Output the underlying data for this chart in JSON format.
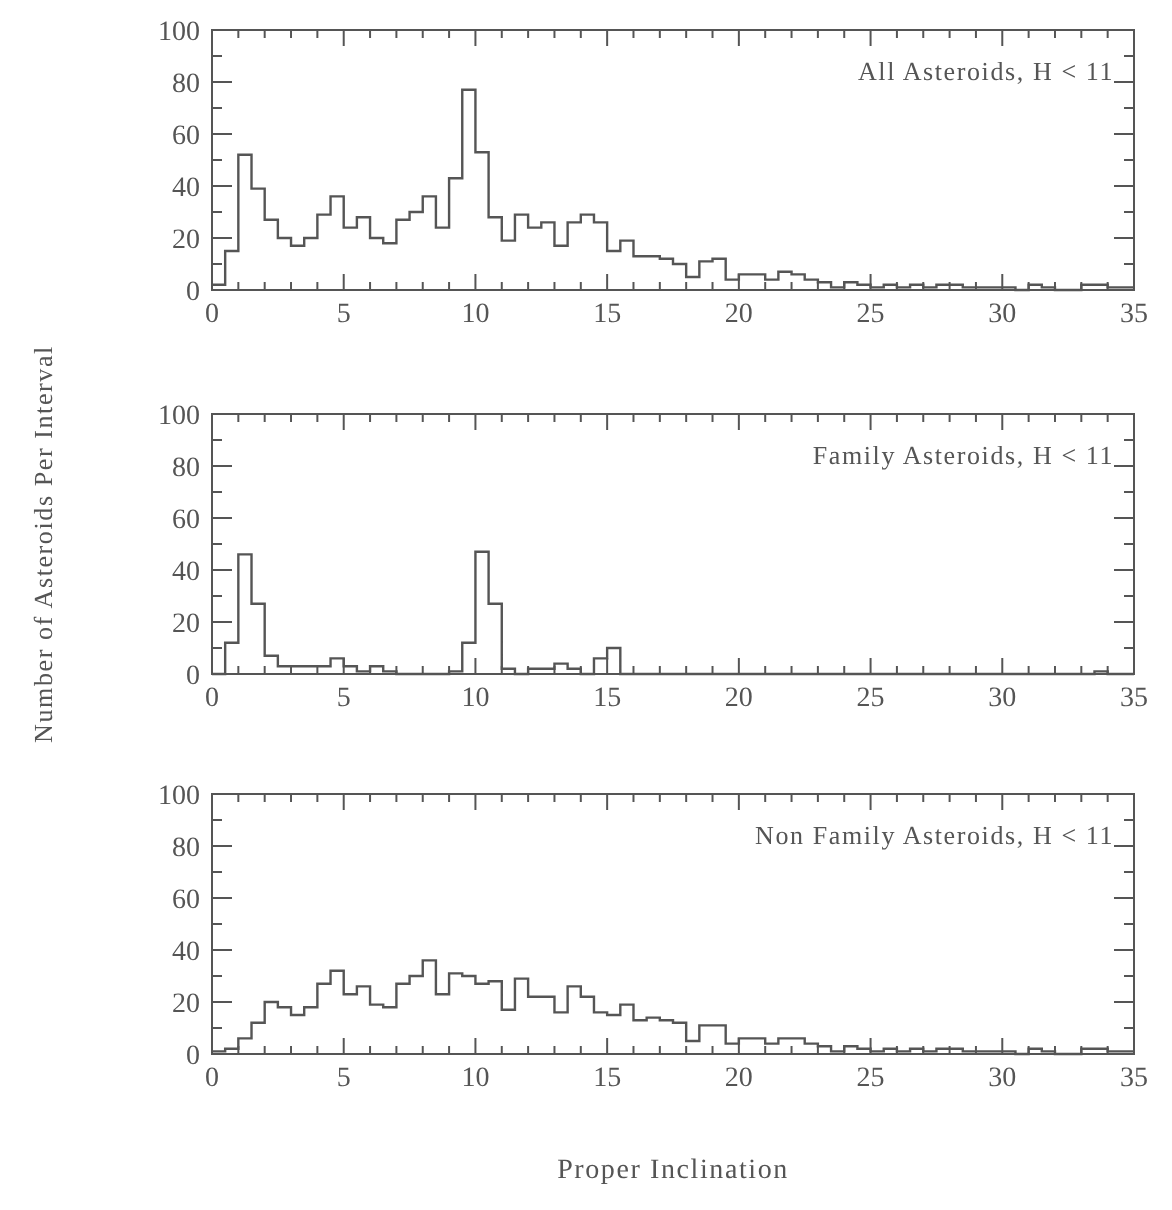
{
  "chart_data": [
    {
      "type": "histogram",
      "annotations": [
        "All Asteroids, H < 11"
      ],
      "color": "#555555",
      "bins": [
        0,
        0.5,
        1,
        1.5,
        2,
        2.5,
        3,
        3.5,
        4,
        4.5,
        5,
        5.5,
        6,
        6.5,
        7,
        7.5,
        8,
        8.5,
        9,
        9.5,
        10,
        10.5,
        11,
        11.5,
        12,
        12.5,
        13,
        13.5,
        14,
        14.5,
        15,
        15.5,
        16,
        16.5,
        17,
        17.5,
        18,
        18.5,
        19,
        19.5,
        20,
        20.5,
        21,
        21.5,
        22,
        22.5,
        23,
        23.5,
        24,
        24.5,
        25,
        25.5,
        26,
        26.5,
        27,
        27.5,
        28,
        28.5,
        29,
        29.5,
        30,
        30.5,
        31,
        31.5,
        32,
        32.5,
        33,
        33.5,
        34,
        34.5,
        35
      ],
      "values": [
        2,
        15,
        52,
        39,
        27,
        20,
        17,
        20,
        29,
        36,
        24,
        28,
        20,
        18,
        27,
        30,
        36,
        24,
        43,
        77,
        53,
        28,
        19,
        29,
        24,
        26,
        17,
        26,
        29,
        26,
        15,
        19,
        13,
        13,
        12,
        10,
        5,
        11,
        12,
        4,
        6,
        6,
        4,
        7,
        6,
        4,
        3,
        1,
        3,
        2,
        1,
        2,
        1,
        2,
        1,
        2,
        2,
        1,
        1,
        1,
        1,
        0,
        2,
        1,
        0,
        0,
        2,
        2,
        1,
        1
      ],
      "xlim": [
        0,
        35
      ],
      "xticks": [
        0,
        {
          "value": 1,
          "label": null
        },
        {
          "value": 2,
          "label": null
        },
        {
          "value": 3,
          "label": null
        },
        {
          "value": 4,
          "label": null
        },
        5,
        {
          "value": 6,
          "label": null
        },
        {
          "value": 7,
          "label": null
        },
        {
          "value": 8,
          "label": null
        },
        {
          "value": 9,
          "label": null
        },
        10,
        {
          "value": 11,
          "label": null
        },
        {
          "value": 12,
          "label": null
        },
        {
          "value": 13,
          "label": null
        },
        {
          "value": 14,
          "label": null
        },
        15,
        {
          "value": 16,
          "label": null
        },
        {
          "value": 17,
          "label": null
        },
        {
          "value": 18,
          "label": null
        },
        {
          "value": 19,
          "label": null
        },
        20,
        {
          "value": 21,
          "label": null
        },
        {
          "value": 22,
          "label": null
        },
        {
          "value": 23,
          "label": null
        },
        {
          "value": 24,
          "label": null
        },
        25,
        {
          "value": 26,
          "label": null
        },
        {
          "value": 27,
          "label": null
        },
        {
          "value": 28,
          "label": null
        },
        {
          "value": 29,
          "label": null
        },
        30,
        {
          "value": 31,
          "label": null
        },
        {
          "value": 32,
          "label": null
        },
        {
          "value": 33,
          "label": null
        },
        {
          "value": 34,
          "label": null
        },
        35
      ],
      "ylim": [
        0,
        100
      ],
      "yticks": [
        0,
        {
          "value": 10,
          "label": null
        },
        20,
        {
          "value": 30,
          "label": null
        },
        40,
        {
          "value": 50,
          "label": null
        },
        60,
        {
          "value": 70,
          "label": null
        },
        80,
        {
          "value": 90,
          "label": null
        },
        100
      ]
    },
    {
      "type": "histogram",
      "annotations": [
        "Family Asteroids, H < 11"
      ],
      "ylabel": "Number of Asteroids Per Interval",
      "color": "#555555",
      "bins": [
        0,
        0.5,
        1,
        1.5,
        2,
        2.5,
        3,
        3.5,
        4,
        4.5,
        5,
        5.5,
        6,
        6.5,
        7,
        7.5,
        8,
        8.5,
        9,
        9.5,
        10,
        10.5,
        11,
        11.5,
        12,
        12.5,
        13,
        13.5,
        14,
        14.5,
        15,
        15.5,
        16,
        16.5,
        17,
        17.5,
        18,
        18.5,
        19,
        19.5,
        20,
        20.5,
        21,
        21.5,
        22,
        22.5,
        23,
        23.5,
        24,
        24.5,
        25,
        25.5,
        26,
        26.5,
        27,
        27.5,
        28,
        28.5,
        29,
        29.5,
        30,
        30.5,
        31,
        31.5,
        32,
        32.5,
        33,
        33.5,
        34,
        34.5,
        35
      ],
      "values": [
        0,
        12,
        46,
        27,
        7,
        3,
        3,
        3,
        3,
        6,
        3,
        1,
        3,
        1,
        0,
        0,
        0,
        0,
        1,
        12,
        47,
        27,
        2,
        0,
        2,
        2,
        4,
        2,
        0,
        6,
        10,
        0,
        0,
        0,
        0,
        0,
        0,
        0,
        0,
        0,
        0,
        0,
        0,
        0,
        0,
        0,
        0,
        0,
        0,
        0,
        0,
        0,
        0,
        0,
        0,
        0,
        0,
        0,
        0,
        0,
        0,
        0,
        0,
        0,
        0,
        0,
        0,
        1,
        0,
        0
      ],
      "xlim": [
        0,
        35
      ],
      "xticks": [
        0,
        {
          "value": 1,
          "label": null
        },
        {
          "value": 2,
          "label": null
        },
        {
          "value": 3,
          "label": null
        },
        {
          "value": 4,
          "label": null
        },
        5,
        {
          "value": 6,
          "label": null
        },
        {
          "value": 7,
          "label": null
        },
        {
          "value": 8,
          "label": null
        },
        {
          "value": 9,
          "label": null
        },
        10,
        {
          "value": 11,
          "label": null
        },
        {
          "value": 12,
          "label": null
        },
        {
          "value": 13,
          "label": null
        },
        {
          "value": 14,
          "label": null
        },
        15,
        {
          "value": 16,
          "label": null
        },
        {
          "value": 17,
          "label": null
        },
        {
          "value": 18,
          "label": null
        },
        {
          "value": 19,
          "label": null
        },
        20,
        {
          "value": 21,
          "label": null
        },
        {
          "value": 22,
          "label": null
        },
        {
          "value": 23,
          "label": null
        },
        {
          "value": 24,
          "label": null
        },
        25,
        {
          "value": 26,
          "label": null
        },
        {
          "value": 27,
          "label": null
        },
        {
          "value": 28,
          "label": null
        },
        {
          "value": 29,
          "label": null
        },
        30,
        {
          "value": 31,
          "label": null
        },
        {
          "value": 32,
          "label": null
        },
        {
          "value": 33,
          "label": null
        },
        {
          "value": 34,
          "label": null
        },
        35
      ],
      "ylim": [
        0,
        100
      ],
      "yticks": [
        0,
        {
          "value": 10,
          "label": null
        },
        20,
        {
          "value": 30,
          "label": null
        },
        40,
        {
          "value": 50,
          "label": null
        },
        60,
        {
          "value": 70,
          "label": null
        },
        80,
        {
          "value": 90,
          "label": null
        },
        100
      ]
    },
    {
      "type": "histogram",
      "annotations": [
        "Non Family Asteroids, H < 11"
      ],
      "xlabel": "Proper Inclination",
      "color": "#555555",
      "bins": [
        0,
        0.5,
        1,
        1.5,
        2,
        2.5,
        3,
        3.5,
        4,
        4.5,
        5,
        5.5,
        6,
        6.5,
        7,
        7.5,
        8,
        8.5,
        9,
        9.5,
        10,
        10.5,
        11,
        11.5,
        12,
        12.5,
        13,
        13.5,
        14,
        14.5,
        15,
        15.5,
        16,
        16.5,
        17,
        17.5,
        18,
        18.5,
        19,
        19.5,
        20,
        20.5,
        21,
        21.5,
        22,
        22.5,
        23,
        23.5,
        24,
        24.5,
        25,
        25.5,
        26,
        26.5,
        27,
        27.5,
        28,
        28.5,
        29,
        29.5,
        30,
        30.5,
        31,
        31.5,
        32,
        32.5,
        33,
        33.5,
        34,
        34.5,
        35
      ],
      "values": [
        1,
        2,
        6,
        12,
        20,
        18,
        15,
        18,
        27,
        32,
        23,
        26,
        19,
        18,
        27,
        30,
        36,
        23,
        31,
        30,
        27,
        28,
        17,
        29,
        22,
        22,
        16,
        26,
        22,
        16,
        15,
        19,
        13,
        14,
        13,
        12,
        5,
        11,
        11,
        4,
        6,
        6,
        4,
        6,
        6,
        4,
        3,
        1,
        3,
        2,
        1,
        2,
        1,
        2,
        1,
        2,
        2,
        1,
        1,
        1,
        1,
        0,
        2,
        1,
        0,
        0,
        2,
        2,
        1,
        1
      ],
      "xlim": [
        0,
        35
      ],
      "xticks": [
        0,
        {
          "value": 1,
          "label": null
        },
        {
          "value": 2,
          "label": null
        },
        {
          "value": 3,
          "label": null
        },
        {
          "value": 4,
          "label": null
        },
        5,
        {
          "value": 6,
          "label": null
        },
        {
          "value": 7,
          "label": null
        },
        {
          "value": 8,
          "label": null
        },
        {
          "value": 9,
          "label": null
        },
        10,
        {
          "value": 11,
          "label": null
        },
        {
          "value": 12,
          "label": null
        },
        {
          "value": 13,
          "label": null
        },
        {
          "value": 14,
          "label": null
        },
        15,
        {
          "value": 16,
          "label": null
        },
        {
          "value": 17,
          "label": null
        },
        {
          "value": 18,
          "label": null
        },
        {
          "value": 19,
          "label": null
        },
        20,
        {
          "value": 21,
          "label": null
        },
        {
          "value": 22,
          "label": null
        },
        {
          "value": 23,
          "label": null
        },
        {
          "value": 24,
          "label": null
        },
        25,
        {
          "value": 26,
          "label": null
        },
        {
          "value": 27,
          "label": null
        },
        {
          "value": 28,
          "label": null
        },
        {
          "value": 29,
          "label": null
        },
        30,
        {
          "value": 31,
          "label": null
        },
        {
          "value": 32,
          "label": null
        },
        {
          "value": 33,
          "label": null
        },
        {
          "value": 34,
          "label": null
        },
        35
      ],
      "ylim": [
        0,
        100
      ],
      "yticks": [
        0,
        {
          "value": 10,
          "label": null
        },
        20,
        {
          "value": 30,
          "label": null
        },
        40,
        {
          "value": 50,
          "label": null
        },
        60,
        {
          "value": 70,
          "label": null
        },
        80,
        {
          "value": 90,
          "label": null
        },
        100
      ]
    }
  ]
}
